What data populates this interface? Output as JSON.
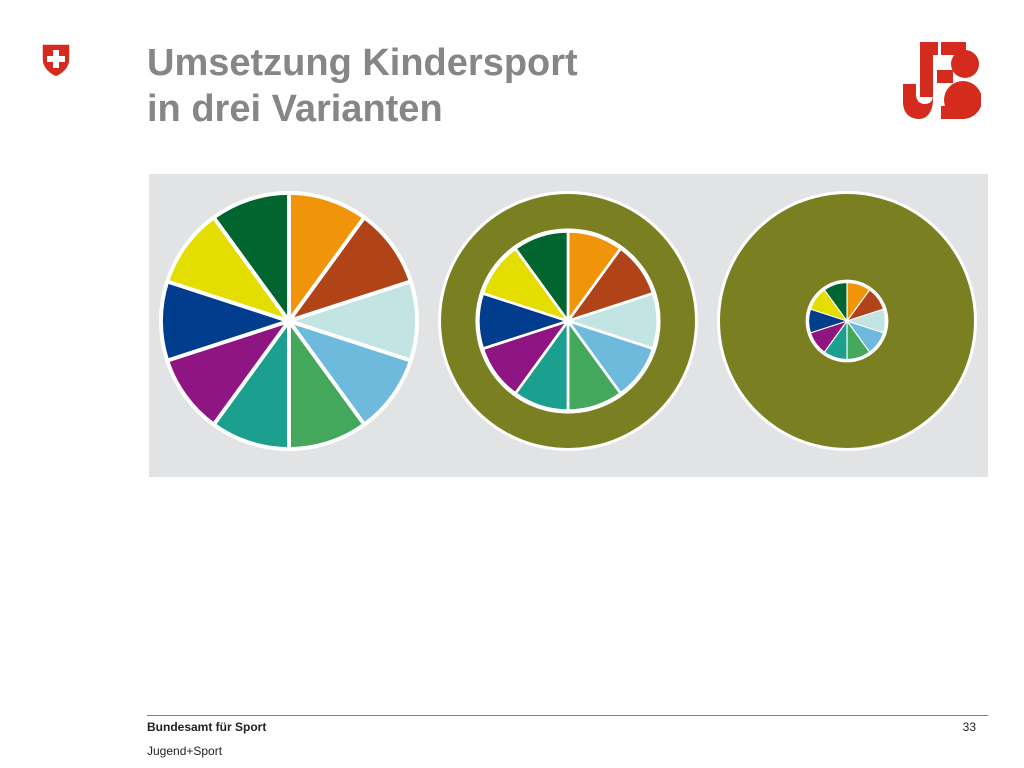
{
  "slide": {
    "title_line1": "Umsetzung Kindersport",
    "title_line2": "in drei Varianten",
    "page_number": "33"
  },
  "footer": {
    "organization": "Bundesamt für Sport",
    "program": "Jugend+Sport"
  },
  "logos": {
    "left": "swiss-federal-shield",
    "right": "jugend-und-sport-logo"
  },
  "colors": {
    "brand_red": "#d52b1e",
    "title_gray": "#868686",
    "panel_bg": "#e1e3e4",
    "ring": "#7a8021"
  },
  "wheel_segments": [
    "#f0950a",
    "#b04418",
    "#c2e4e3",
    "#6ebadc",
    "#43a85c",
    "#1ba08f",
    "#8f1682",
    "#023c8c",
    "#e3de00",
    "#00652f"
  ],
  "variants": [
    {
      "name": "variant-1",
      "wheel_share": 1.0
    },
    {
      "name": "variant-2",
      "wheel_share": 0.7
    },
    {
      "name": "variant-3",
      "wheel_share": 0.3
    }
  ]
}
